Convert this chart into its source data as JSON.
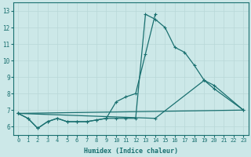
{
  "xlabel": "Humidex (Indice chaleur)",
  "xlim": [
    -0.5,
    23.5
  ],
  "ylim": [
    5.5,
    13.5
  ],
  "yticks": [
    6,
    7,
    8,
    9,
    10,
    11,
    12,
    13
  ],
  "xticks": [
    0,
    1,
    2,
    3,
    4,
    5,
    6,
    7,
    8,
    9,
    10,
    11,
    12,
    13,
    14,
    15,
    16,
    17,
    18,
    19,
    20,
    21,
    22,
    23
  ],
  "bg_color": "#cce8e8",
  "grid_color": "#b8d8d8",
  "line_color": "#1a7070",
  "series1_x": [
    0,
    1,
    2,
    3,
    4,
    5,
    6,
    7,
    8,
    9,
    10,
    11,
    12,
    13,
    14,
    15,
    16,
    17,
    18,
    19,
    20,
    23
  ],
  "series1_y": [
    6.8,
    6.5,
    5.9,
    6.3,
    6.5,
    6.3,
    6.3,
    6.3,
    6.4,
    6.5,
    6.5,
    6.5,
    6.5,
    12.8,
    12.5,
    12.0,
    10.8,
    10.5,
    9.7,
    8.8,
    8.3,
    7.0
  ],
  "series2_x": [
    0,
    1,
    2,
    3,
    4,
    5,
    6,
    7,
    8,
    9,
    10,
    11,
    12,
    13,
    14
  ],
  "series2_y": [
    6.8,
    6.5,
    5.9,
    6.3,
    6.5,
    6.3,
    6.3,
    6.3,
    6.4,
    6.5,
    7.5,
    7.8,
    8.0,
    10.4,
    12.8
  ],
  "series3_x": [
    0,
    14,
    19,
    20,
    23
  ],
  "series3_y": [
    6.8,
    6.5,
    8.8,
    8.5,
    7.0
  ],
  "series4_x": [
    0,
    23
  ],
  "series4_y": [
    6.8,
    7.0
  ]
}
